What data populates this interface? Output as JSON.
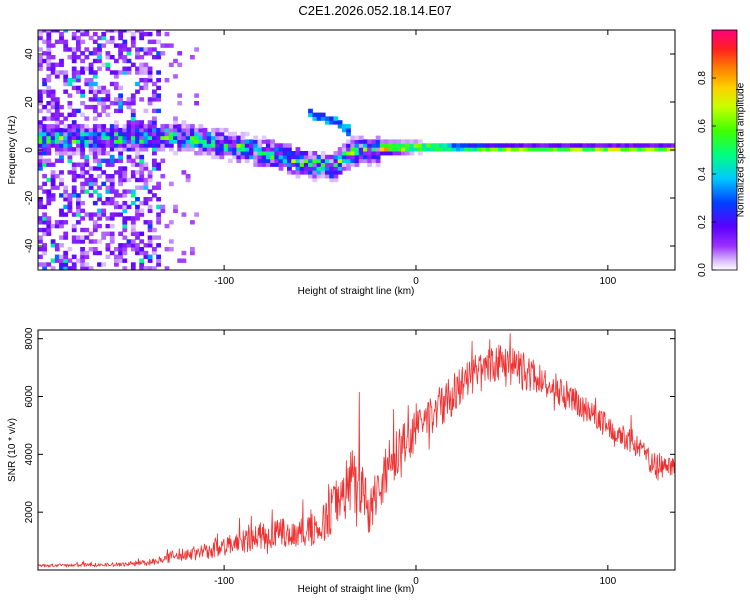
{
  "figure_title": "C2E1.2026.052.18.14.E07",
  "chart_data": [
    {
      "type": "heatmap",
      "title": "C2E1.2026.052.18.14.E07",
      "xlabel": "Height of straight line (km)",
      "ylabel": "Frequency (Hz)",
      "xlim": [
        -197,
        135
      ],
      "ylim": [
        -50,
        50
      ],
      "xticks": [
        -100,
        0,
        100
      ],
      "yticks": [
        -40,
        -20,
        0,
        20,
        40
      ],
      "colorbar": {
        "label": "Normalized spectral amplitude",
        "range": [
          0.0,
          1.0
        ],
        "ticks": [
          0.0,
          0.2,
          0.4,
          0.6,
          0.8
        ],
        "tick_labels": [
          "0.0",
          "0.2",
          "0.4",
          "0.6",
          "0.8"
        ],
        "colormap": [
          "#ffffff",
          "#d8b8ff",
          "#9b30ff",
          "#5a00ff",
          "#0040ff",
          "#00c8ff",
          "#00ff80",
          "#40ff00",
          "#c8ff00",
          "#ffd000",
          "#ff8000",
          "#ff2020",
          "#ff0080"
        ]
      },
      "features": [
        {
          "name": "broadband-noise",
          "x_range": [
            -197,
            -135
          ],
          "y_range": [
            -50,
            50
          ],
          "amplitude": 0.3
        },
        {
          "name": "signal-band",
          "path": [
            [
              -160,
              4
            ],
            [
              -130,
              5
            ],
            [
              -110,
              3
            ],
            [
              -90,
              0
            ],
            [
              -75,
              -3
            ],
            [
              -60,
              -6
            ],
            [
              -45,
              -8
            ],
            [
              -35,
              -2
            ],
            [
              -20,
              0
            ],
            [
              0,
              0.5
            ],
            [
              50,
              0
            ],
            [
              135,
              0
            ]
          ],
          "half_width_hz": [
            6,
            1.5
          ],
          "peak_amplitude": 0.9
        },
        {
          "name": "branch",
          "path": [
            [
              -55,
              14
            ],
            [
              -45,
              12
            ],
            [
              -38,
              8
            ]
          ],
          "amplitude": 0.4
        }
      ]
    },
    {
      "type": "line",
      "xlabel": "Height of straight line (km)",
      "ylabel": "SNR (10 * v/v)",
      "xlim": [
        -197,
        135
      ],
      "ylim": [
        0,
        8300
      ],
      "xticks": [
        -100,
        0,
        100
      ],
      "yticks": [
        2000,
        4000,
        6000,
        8000
      ],
      "color": "#f03030",
      "envelope": {
        "x": [
          -197,
          -160,
          -140,
          -125,
          -110,
          -95,
          -80,
          -65,
          -50,
          -40,
          -30,
          -25,
          -15,
          -8,
          0,
          15,
          30,
          45,
          55,
          70,
          85,
          100,
          115,
          125,
          135
        ],
        "mean": [
          150,
          180,
          250,
          500,
          650,
          900,
          1200,
          1300,
          1400,
          2500,
          3500,
          2000,
          3500,
          4200,
          4800,
          5800,
          6700,
          7200,
          6900,
          6400,
          5700,
          5000,
          4300,
          3600,
          3600
        ],
        "spread": [
          100,
          120,
          180,
          400,
          500,
          700,
          900,
          900,
          1100,
          1800,
          2600,
          1500,
          1800,
          1400,
          1300,
          1300,
          1200,
          1200,
          1200,
          1000,
          900,
          800,
          700,
          900,
          500
        ]
      }
    }
  ]
}
